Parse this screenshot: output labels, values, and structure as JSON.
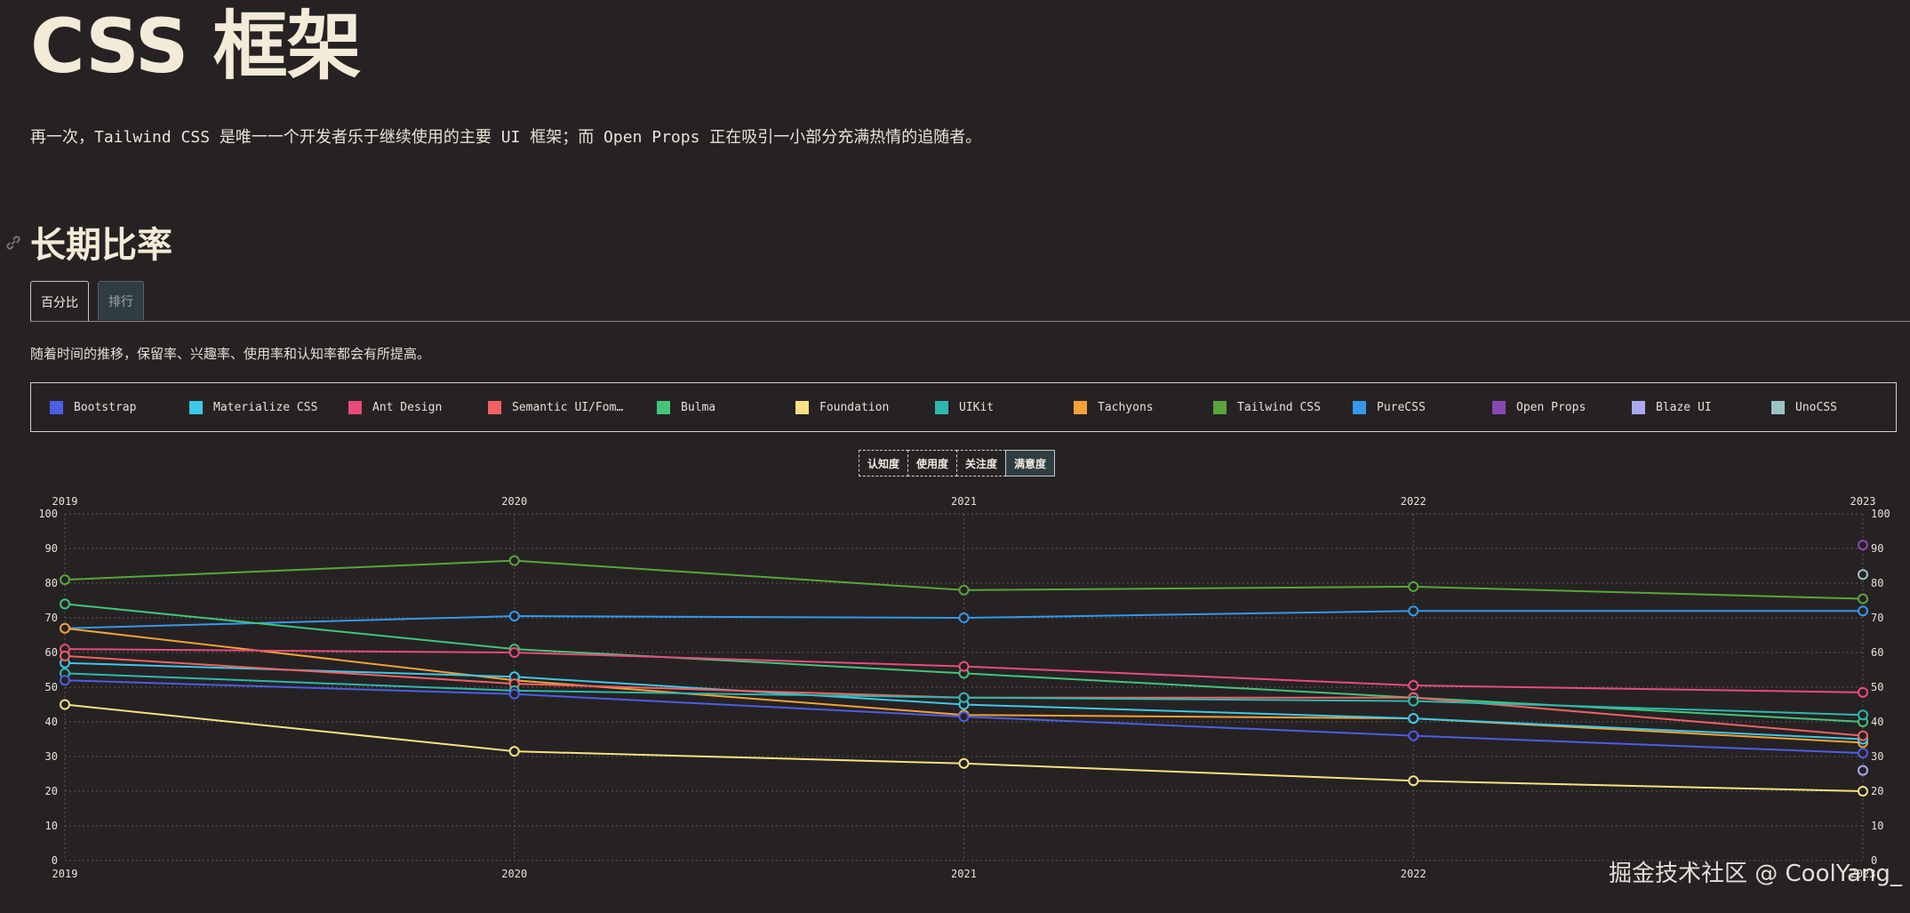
{
  "page": {
    "title": "CSS 框架",
    "intro": "再一次，Tailwind CSS 是唯一一个开发者乐于继续使用的主要 UI 框架；而 Open Props 正在吸引一小部分充满热情的追随者。",
    "section_title": "长期比率",
    "description": "随着时间的推移，保留率、兴趣率、使用率和认知率都会有所提高。",
    "watermark": "掘金技术社区 @ CoolYang_"
  },
  "tabs": [
    {
      "label": "百分比",
      "active": true
    },
    {
      "label": "排行",
      "active": false
    }
  ],
  "metric_buttons": [
    {
      "label": "认知度",
      "active": false
    },
    {
      "label": "使用度",
      "active": false
    },
    {
      "label": "关注度",
      "active": false
    },
    {
      "label": "满意度",
      "active": true
    }
  ],
  "legend": [
    {
      "name": "Bootstrap",
      "color": "#4b5ee4"
    },
    {
      "name": "Materialize CSS",
      "color": "#3cc8e8"
    },
    {
      "name": "Ant Design",
      "color": "#e94b7b"
    },
    {
      "name": "Semantic UI/Fom…",
      "color": "#f06264"
    },
    {
      "name": "Bulma",
      "color": "#43c47a"
    },
    {
      "name": "Foundation",
      "color": "#f8e184"
    },
    {
      "name": "UIKit",
      "color": "#2db8ae"
    },
    {
      "name": "Tachyons",
      "color": "#f2a236"
    },
    {
      "name": "Tailwind CSS",
      "color": "#5aa43c"
    },
    {
      "name": "PureCSS",
      "color": "#3598ec"
    },
    {
      "name": "Open Props",
      "color": "#8848b4"
    },
    {
      "name": "Blaze UI",
      "color": "#aaa8f0"
    },
    {
      "name": "UnoCSS",
      "color": "#9ac4c4"
    }
  ],
  "chart_data": {
    "type": "line",
    "x": [
      2019,
      2020,
      2021,
      2022,
      2023
    ],
    "ylim": [
      0,
      100
    ],
    "yticks": [
      0,
      10,
      20,
      30,
      40,
      50,
      60,
      70,
      80,
      90,
      100
    ],
    "grid": true,
    "series": [
      {
        "name": "Tailwind CSS",
        "color": "#5aa43c",
        "values": [
          81,
          86.5,
          78,
          79,
          75.5
        ]
      },
      {
        "name": "PureCSS",
        "color": "#3598ec",
        "values": [
          67,
          70.5,
          70,
          72,
          72
        ]
      },
      {
        "name": "Bulma",
        "color": "#43c47a",
        "values": [
          74,
          61,
          54,
          47,
          40
        ]
      },
      {
        "name": "Tachyons",
        "color": "#f2a236",
        "values": [
          67,
          52,
          42,
          41,
          34
        ]
      },
      {
        "name": "Ant Design",
        "color": "#e94b7b",
        "values": [
          61,
          60,
          56,
          50.5,
          48.5
        ]
      },
      {
        "name": "Materialize CSS",
        "color": "#3cc8e8",
        "values": [
          57,
          53,
          45,
          41,
          35
        ]
      },
      {
        "name": "Semantic UI/Fom…",
        "color": "#f06264",
        "values": [
          59,
          51,
          47,
          47,
          36
        ]
      },
      {
        "name": "UIKit",
        "color": "#2db8ae",
        "values": [
          54,
          49,
          47,
          46,
          42
        ]
      },
      {
        "name": "Bootstrap",
        "color": "#4b5ee4",
        "values": [
          52,
          48,
          41.5,
          36,
          31
        ]
      },
      {
        "name": "Foundation",
        "color": "#f8e184",
        "values": [
          45,
          31.5,
          28,
          23,
          20
        ]
      },
      {
        "name": "Open Props",
        "color": "#8848b4",
        "values": [
          null,
          null,
          null,
          null,
          91
        ]
      },
      {
        "name": "UnoCSS",
        "color": "#9ac4c4",
        "values": [
          null,
          null,
          null,
          null,
          82.5
        ]
      },
      {
        "name": "Blaze UI",
        "color": "#aaa8f0",
        "values": [
          null,
          null,
          null,
          null,
          26
        ]
      }
    ]
  }
}
